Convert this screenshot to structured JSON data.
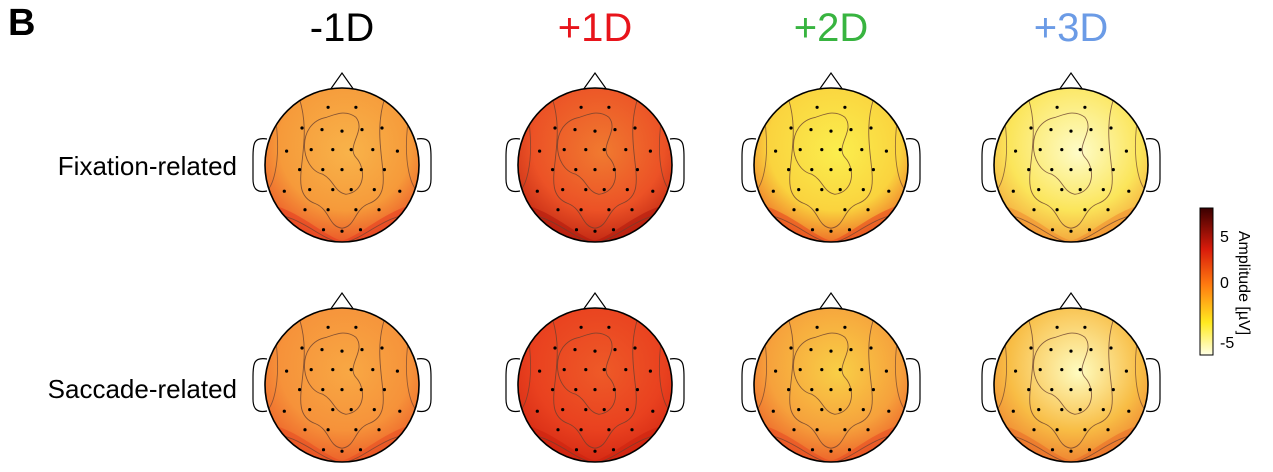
{
  "panel_label": "B",
  "columns": [
    {
      "label": "-1D",
      "color": "#000000"
    },
    {
      "label": "+1D",
      "color": "#e8141b"
    },
    {
      "label": "+2D",
      "color": "#38b440"
    },
    {
      "label": "+3D",
      "color": "#6b9be6"
    }
  ],
  "rows": [
    {
      "label": "Fixation-related"
    },
    {
      "label": "Saccade-related"
    }
  ],
  "colorbar": {
    "title": "Amplitude [µV]",
    "ticks": [
      "5",
      "0",
      "-5"
    ],
    "colors": {
      "pos": "#3a0000",
      "mid_high": "#d81b0b",
      "zero": "#ff7a10",
      "mid_low": "#ffea20",
      "neg": "#ffffe6"
    }
  },
  "topomaps": [
    {
      "row": 0,
      "col": 0,
      "base": "#f69a3a",
      "posterior": "#e63b21",
      "center_low": "#f8b34a"
    },
    {
      "row": 0,
      "col": 1,
      "base": "#ec5226",
      "posterior": "#b0170c",
      "center_low": "#f07a30"
    },
    {
      "row": 0,
      "col": 2,
      "base": "#fad33e",
      "posterior": "#e8431f",
      "center_low": "#fbee4e"
    },
    {
      "row": 0,
      "col": 3,
      "base": "#fbe55a",
      "posterior": "#f08b30",
      "center_low": "#fefcc8"
    },
    {
      "row": 1,
      "col": 0,
      "base": "#f6923a",
      "posterior": "#e84b22",
      "center_low": "#f8a844"
    },
    {
      "row": 1,
      "col": 1,
      "base": "#e9411f",
      "posterior": "#cc200f",
      "center_low": "#ee5a28"
    },
    {
      "row": 1,
      "col": 2,
      "base": "#f6a13c",
      "posterior": "#e84822",
      "center_low": "#f9cf46"
    },
    {
      "row": 1,
      "col": 3,
      "base": "#f8bd45",
      "posterior": "#ea6a28",
      "center_low": "#fefcc0"
    }
  ]
}
